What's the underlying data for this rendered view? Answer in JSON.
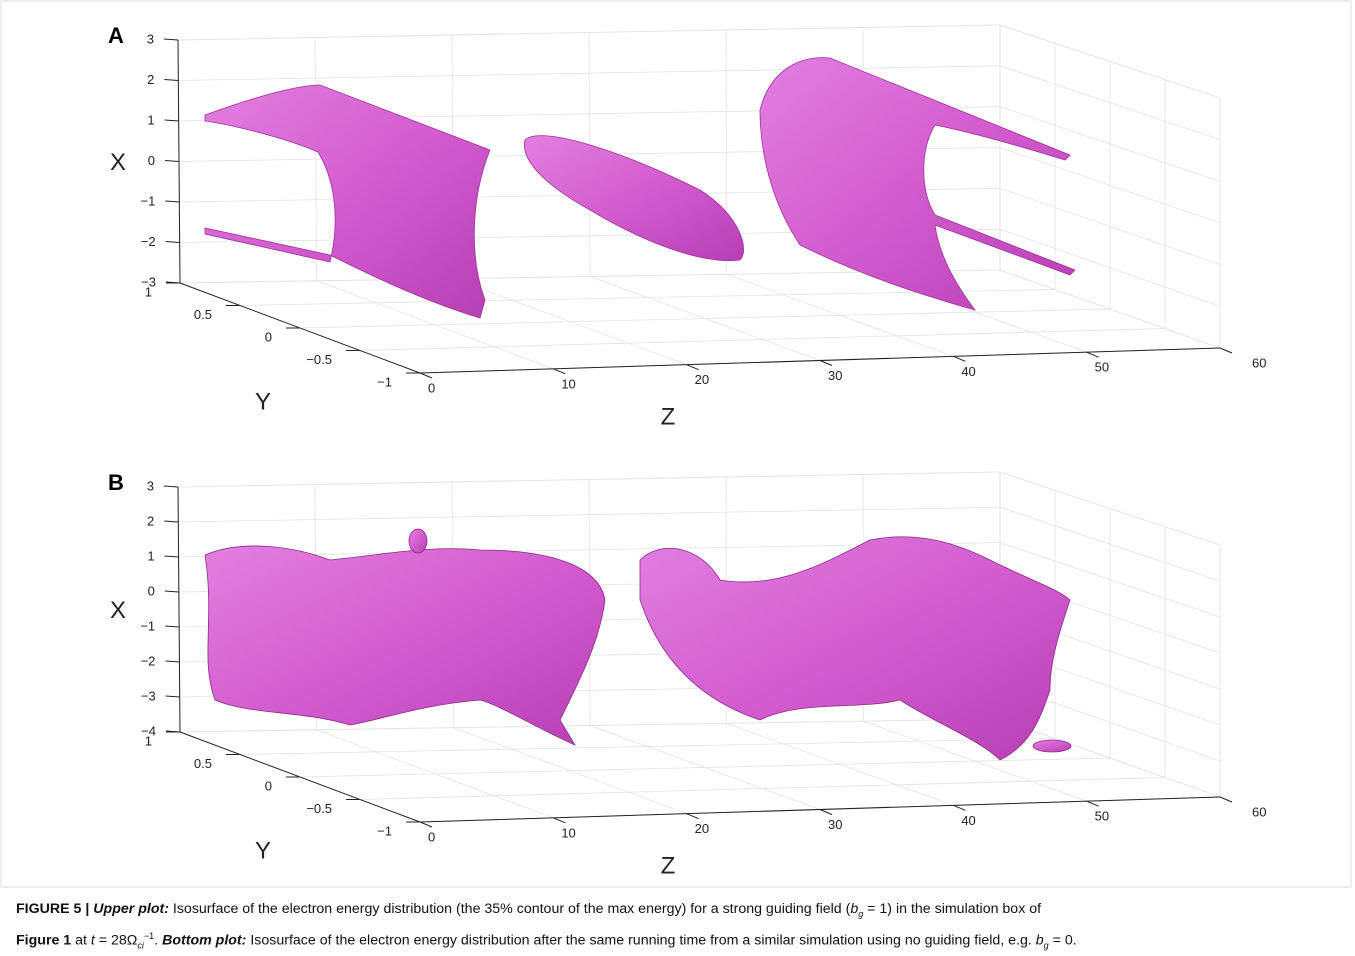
{
  "panels": [
    {
      "label": "A",
      "x_label": "X",
      "y_label": "Y",
      "z_label": "Z",
      "x_ticks": [
        "3",
        "2",
        "1",
        "0",
        "−1",
        "−2",
        "−3"
      ],
      "y_ticks": [
        "1",
        "0.5",
        "0",
        "−0.5",
        "−1"
      ],
      "z_ticks": [
        "0",
        "10",
        "20",
        "30",
        "40",
        "50",
        "60"
      ]
    },
    {
      "label": "B",
      "x_label": "X",
      "y_label": "Y",
      "z_label": "Z",
      "x_ticks": [
        "3",
        "2",
        "1",
        "0",
        "−1",
        "−2",
        "−3",
        "−4"
      ],
      "y_ticks": [
        "1",
        "0.5",
        "0",
        "−0.5",
        "−1"
      ],
      "z_ticks": [
        "0",
        "10",
        "20",
        "30",
        "40",
        "50",
        "60"
      ]
    }
  ],
  "caption": [
    "FIGURE 5 | ",
    "Upper plot:",
    " Isosurface of the electron energy distribution (the 35% contour of the max energy) for a strong guiding field (",
    "b",
    "g",
    " = 1) in the simulation box of",
    "Figure 1",
    " at ",
    "t",
    " = 28Ω",
    "ci",
    "−1",
    ". ",
    "Bottom plot:",
    " Isosurface of the electron energy distribution after the same running time from a similar simulation using no guiding field, e.g. ",
    "b",
    "g",
    " = 0."
  ]
}
